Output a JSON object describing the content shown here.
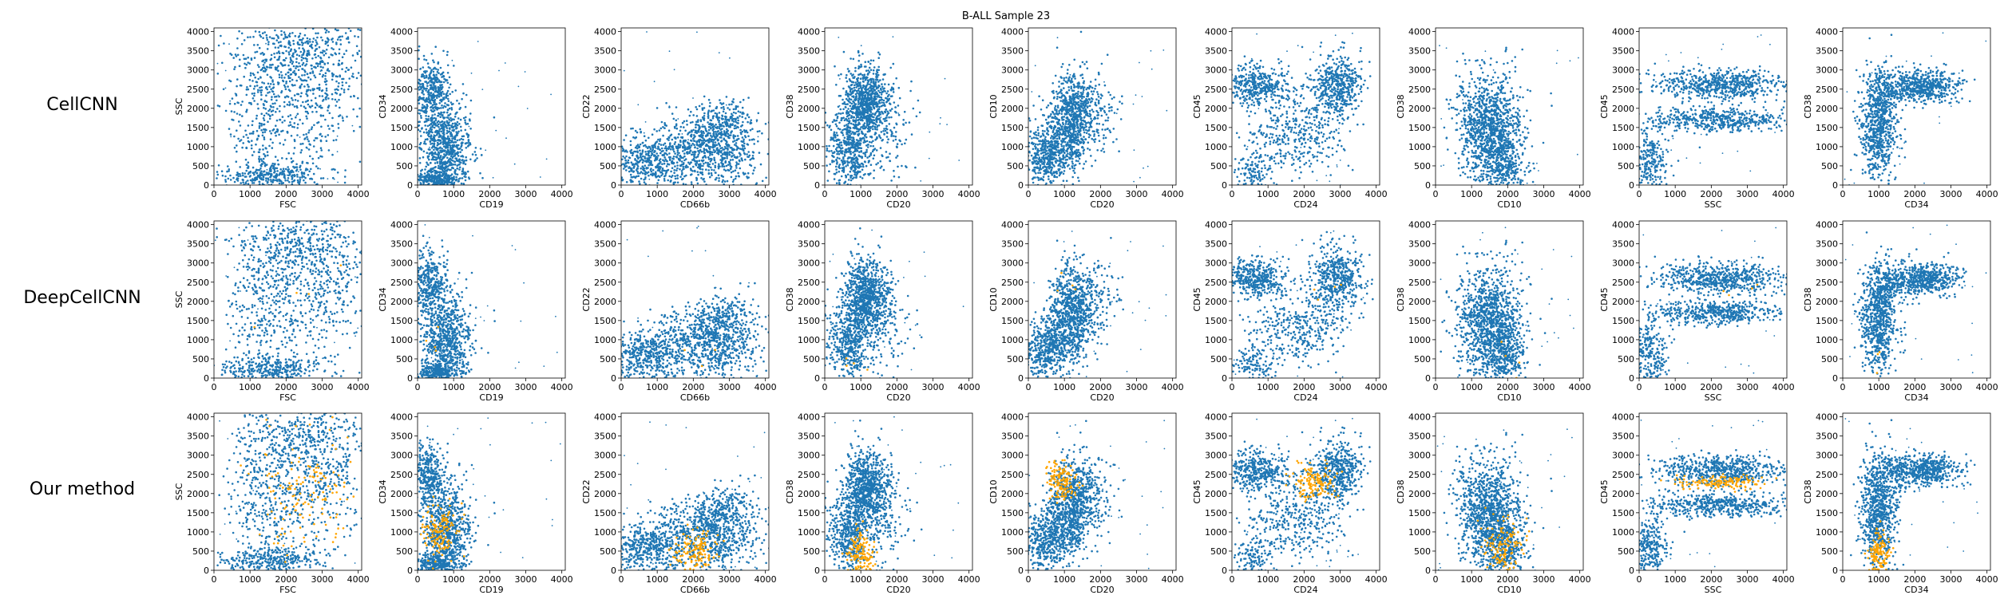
{
  "figure": {
    "title": "B-ALL Sample 23",
    "row_labels": [
      "CellCNN",
      "DeepCellCNN",
      "Our method"
    ],
    "colors": {
      "cells": "#1f77b4",
      "selected": "#ffa500",
      "axes": "#000000",
      "background": "#ffffff"
    }
  },
  "chart_data": {
    "type": "scatter",
    "title": "B-ALL Sample 23",
    "rows": [
      "CellCNN",
      "DeepCellCNN",
      "Our method"
    ],
    "series_legend": [],
    "xlim": [
      0,
      4096
    ],
    "ylim": [
      0,
      4096
    ],
    "xticks": [
      0,
      1000,
      2000,
      3000,
      4000
    ],
    "yticks": [
      0,
      500,
      1000,
      1500,
      2000,
      2500,
      3000,
      3500,
      4000
    ],
    "grid": false,
    "panels": [
      {
        "x": "FSC",
        "y": "SSC",
        "populations": [
          {
            "cx": 2700,
            "cy": 2700,
            "sx": 800,
            "sy": 1000,
            "w": 0.45
          },
          {
            "cx": 1300,
            "cy": 1800,
            "sx": 450,
            "sy": 1300,
            "w": 0.25
          },
          {
            "cx": 1600,
            "cy": 250,
            "sx": 700,
            "sy": 150,
            "w": 0.2
          },
          {
            "cx": 2200,
            "cy": 3600,
            "sx": 800,
            "sy": 350,
            "w": 0.1
          }
        ],
        "highlight": {
          "cx": 2600,
          "cy": 2000,
          "sx": 700,
          "sy": 700
        }
      },
      {
        "x": "CD19",
        "y": "CD34",
        "populations": [
          {
            "cx": 800,
            "cy": 1000,
            "sx": 350,
            "sy": 600,
            "w": 0.55
          },
          {
            "cx": 350,
            "cy": 2500,
            "sx": 250,
            "sy": 400,
            "w": 0.25
          },
          {
            "cx": 500,
            "cy": 150,
            "sx": 300,
            "sy": 120,
            "w": 0.2
          }
        ],
        "highlight": {
          "cx": 600,
          "cy": 1000,
          "sx": 250,
          "sy": 350
        }
      },
      {
        "x": "CD66b",
        "y": "CD22",
        "populations": [
          {
            "cx": 2400,
            "cy": 900,
            "sx": 700,
            "sy": 450,
            "w": 0.55
          },
          {
            "cx": 700,
            "cy": 600,
            "sx": 500,
            "sy": 350,
            "w": 0.3
          },
          {
            "cx": 2900,
            "cy": 1600,
            "sx": 400,
            "sy": 300,
            "w": 0.15
          }
        ],
        "highlight": {
          "cx": 2100,
          "cy": 500,
          "sx": 300,
          "sy": 300
        }
      },
      {
        "x": "CD20",
        "y": "CD38",
        "populations": [
          {
            "cx": 1150,
            "cy": 2200,
            "sx": 300,
            "sy": 450,
            "w": 0.55
          },
          {
            "cx": 700,
            "cy": 900,
            "sx": 300,
            "sy": 500,
            "w": 0.35
          },
          {
            "cx": 1700,
            "cy": 1400,
            "sx": 350,
            "sy": 600,
            "w": 0.1
          }
        ],
        "highlight": {
          "cx": 1000,
          "cy": 400,
          "sx": 200,
          "sy": 300
        }
      },
      {
        "x": "CD20",
        "y": "CD10",
        "populations": [
          {
            "cx": 1200,
            "cy": 1700,
            "sx": 300,
            "sy": 600,
            "w": 0.55
          },
          {
            "cx": 500,
            "cy": 800,
            "sx": 350,
            "sy": 400,
            "w": 0.35
          },
          {
            "cx": 1800,
            "cy": 2000,
            "sx": 350,
            "sy": 500,
            "w": 0.1
          }
        ],
        "highlight": {
          "cx": 950,
          "cy": 2300,
          "sx": 200,
          "sy": 250
        }
      },
      {
        "x": "CD24",
        "y": "CD45",
        "populations": [
          {
            "cx": 700,
            "cy": 2600,
            "sx": 450,
            "sy": 250,
            "w": 0.3
          },
          {
            "cx": 2900,
            "cy": 2600,
            "sx": 350,
            "sy": 400,
            "w": 0.35
          },
          {
            "cx": 1800,
            "cy": 1300,
            "sx": 650,
            "sy": 450,
            "w": 0.25
          },
          {
            "cx": 600,
            "cy": 300,
            "sx": 300,
            "sy": 300,
            "w": 0.1
          }
        ],
        "highlight": {
          "cx": 2300,
          "cy": 2300,
          "sx": 300,
          "sy": 200
        }
      },
      {
        "x": "CD10",
        "y": "CD38",
        "populations": [
          {
            "cx": 1500,
            "cy": 1500,
            "sx": 450,
            "sy": 700,
            "w": 0.75
          },
          {
            "cx": 1900,
            "cy": 600,
            "sx": 300,
            "sy": 450,
            "w": 0.25
          }
        ],
        "highlight": {
          "cx": 1900,
          "cy": 500,
          "sx": 250,
          "sy": 400
        }
      },
      {
        "x": "SSC",
        "y": "CD45",
        "populations": [
          {
            "cx": 2300,
            "cy": 2600,
            "sx": 900,
            "sy": 200,
            "w": 0.45
          },
          {
            "cx": 2200,
            "cy": 1700,
            "sx": 900,
            "sy": 150,
            "w": 0.35
          },
          {
            "cx": 300,
            "cy": 600,
            "sx": 250,
            "sy": 500,
            "w": 0.2
          }
        ],
        "highlight": {
          "cx": 2300,
          "cy": 2300,
          "sx": 600,
          "sy": 100
        }
      },
      {
        "x": "CD34",
        "y": "CD38",
        "populations": [
          {
            "cx": 1000,
            "cy": 1600,
            "sx": 250,
            "sy": 700,
            "w": 0.55
          },
          {
            "cx": 2300,
            "cy": 2600,
            "sx": 450,
            "sy": 200,
            "w": 0.35
          },
          {
            "cx": 1400,
            "cy": 2500,
            "sx": 350,
            "sy": 250,
            "w": 0.1
          }
        ],
        "highlight": {
          "cx": 1000,
          "cy": 400,
          "sx": 150,
          "sy": 300
        }
      }
    ],
    "selected_cells_shown_in_rows": [
      false,
      true,
      true
    ]
  }
}
